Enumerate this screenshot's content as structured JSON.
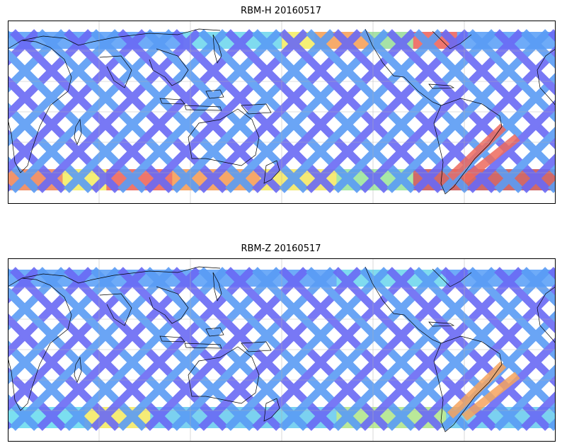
{
  "panels": [
    {
      "title": "RBM-H 20160517",
      "swath_colors": [
        "#6a6af5",
        "#5a9cf5"
      ],
      "north_band": [
        {
          "from": 0.0,
          "to": 0.32,
          "color": "#62a4f7"
        },
        {
          "from": 0.32,
          "to": 0.5,
          "color": "#74d8ee"
        },
        {
          "from": 0.5,
          "to": 0.56,
          "color": "#f4ee6a"
        },
        {
          "from": 0.56,
          "to": 0.66,
          "color": "#f6a45e"
        },
        {
          "from": 0.66,
          "to": 0.74,
          "color": "#9ee0a0"
        },
        {
          "from": 0.74,
          "to": 0.82,
          "color": "#ee6a62"
        },
        {
          "from": 0.82,
          "to": 1.0,
          "color": "#62a4f7"
        }
      ],
      "south_band": [
        {
          "from": 0.0,
          "to": 0.1,
          "color": "#f08a5e"
        },
        {
          "from": 0.1,
          "to": 0.18,
          "color": "#f4ee6a"
        },
        {
          "from": 0.18,
          "to": 0.3,
          "color": "#ee6a5e"
        },
        {
          "from": 0.3,
          "to": 0.46,
          "color": "#f5a05c"
        },
        {
          "from": 0.46,
          "to": 0.6,
          "color": "#f4e86a"
        },
        {
          "from": 0.6,
          "to": 0.74,
          "color": "#9fe6a0"
        },
        {
          "from": 0.74,
          "to": 1.0,
          "color": "#cc5c5c"
        }
      ],
      "hotspot_color": "#ee6a5e"
    },
    {
      "title": "RBM-Z 20160517",
      "swath_colors": [
        "#6a6af5",
        "#5a9cf5"
      ],
      "north_band": [
        {
          "from": 0.0,
          "to": 0.6,
          "color": "#62a4f7"
        },
        {
          "from": 0.6,
          "to": 0.8,
          "color": "#74d8ee"
        },
        {
          "from": 0.8,
          "to": 1.0,
          "color": "#62a4f7"
        }
      ],
      "south_band": [
        {
          "from": 0.0,
          "to": 0.14,
          "color": "#70dcef"
        },
        {
          "from": 0.14,
          "to": 0.26,
          "color": "#f4ea6a"
        },
        {
          "from": 0.26,
          "to": 0.6,
          "color": "#70cdef"
        },
        {
          "from": 0.6,
          "to": 0.8,
          "color": "#b4e690"
        },
        {
          "from": 0.8,
          "to": 1.0,
          "color": "#70cdef"
        }
      ],
      "hotspot_color": "#f6a45e"
    }
  ]
}
